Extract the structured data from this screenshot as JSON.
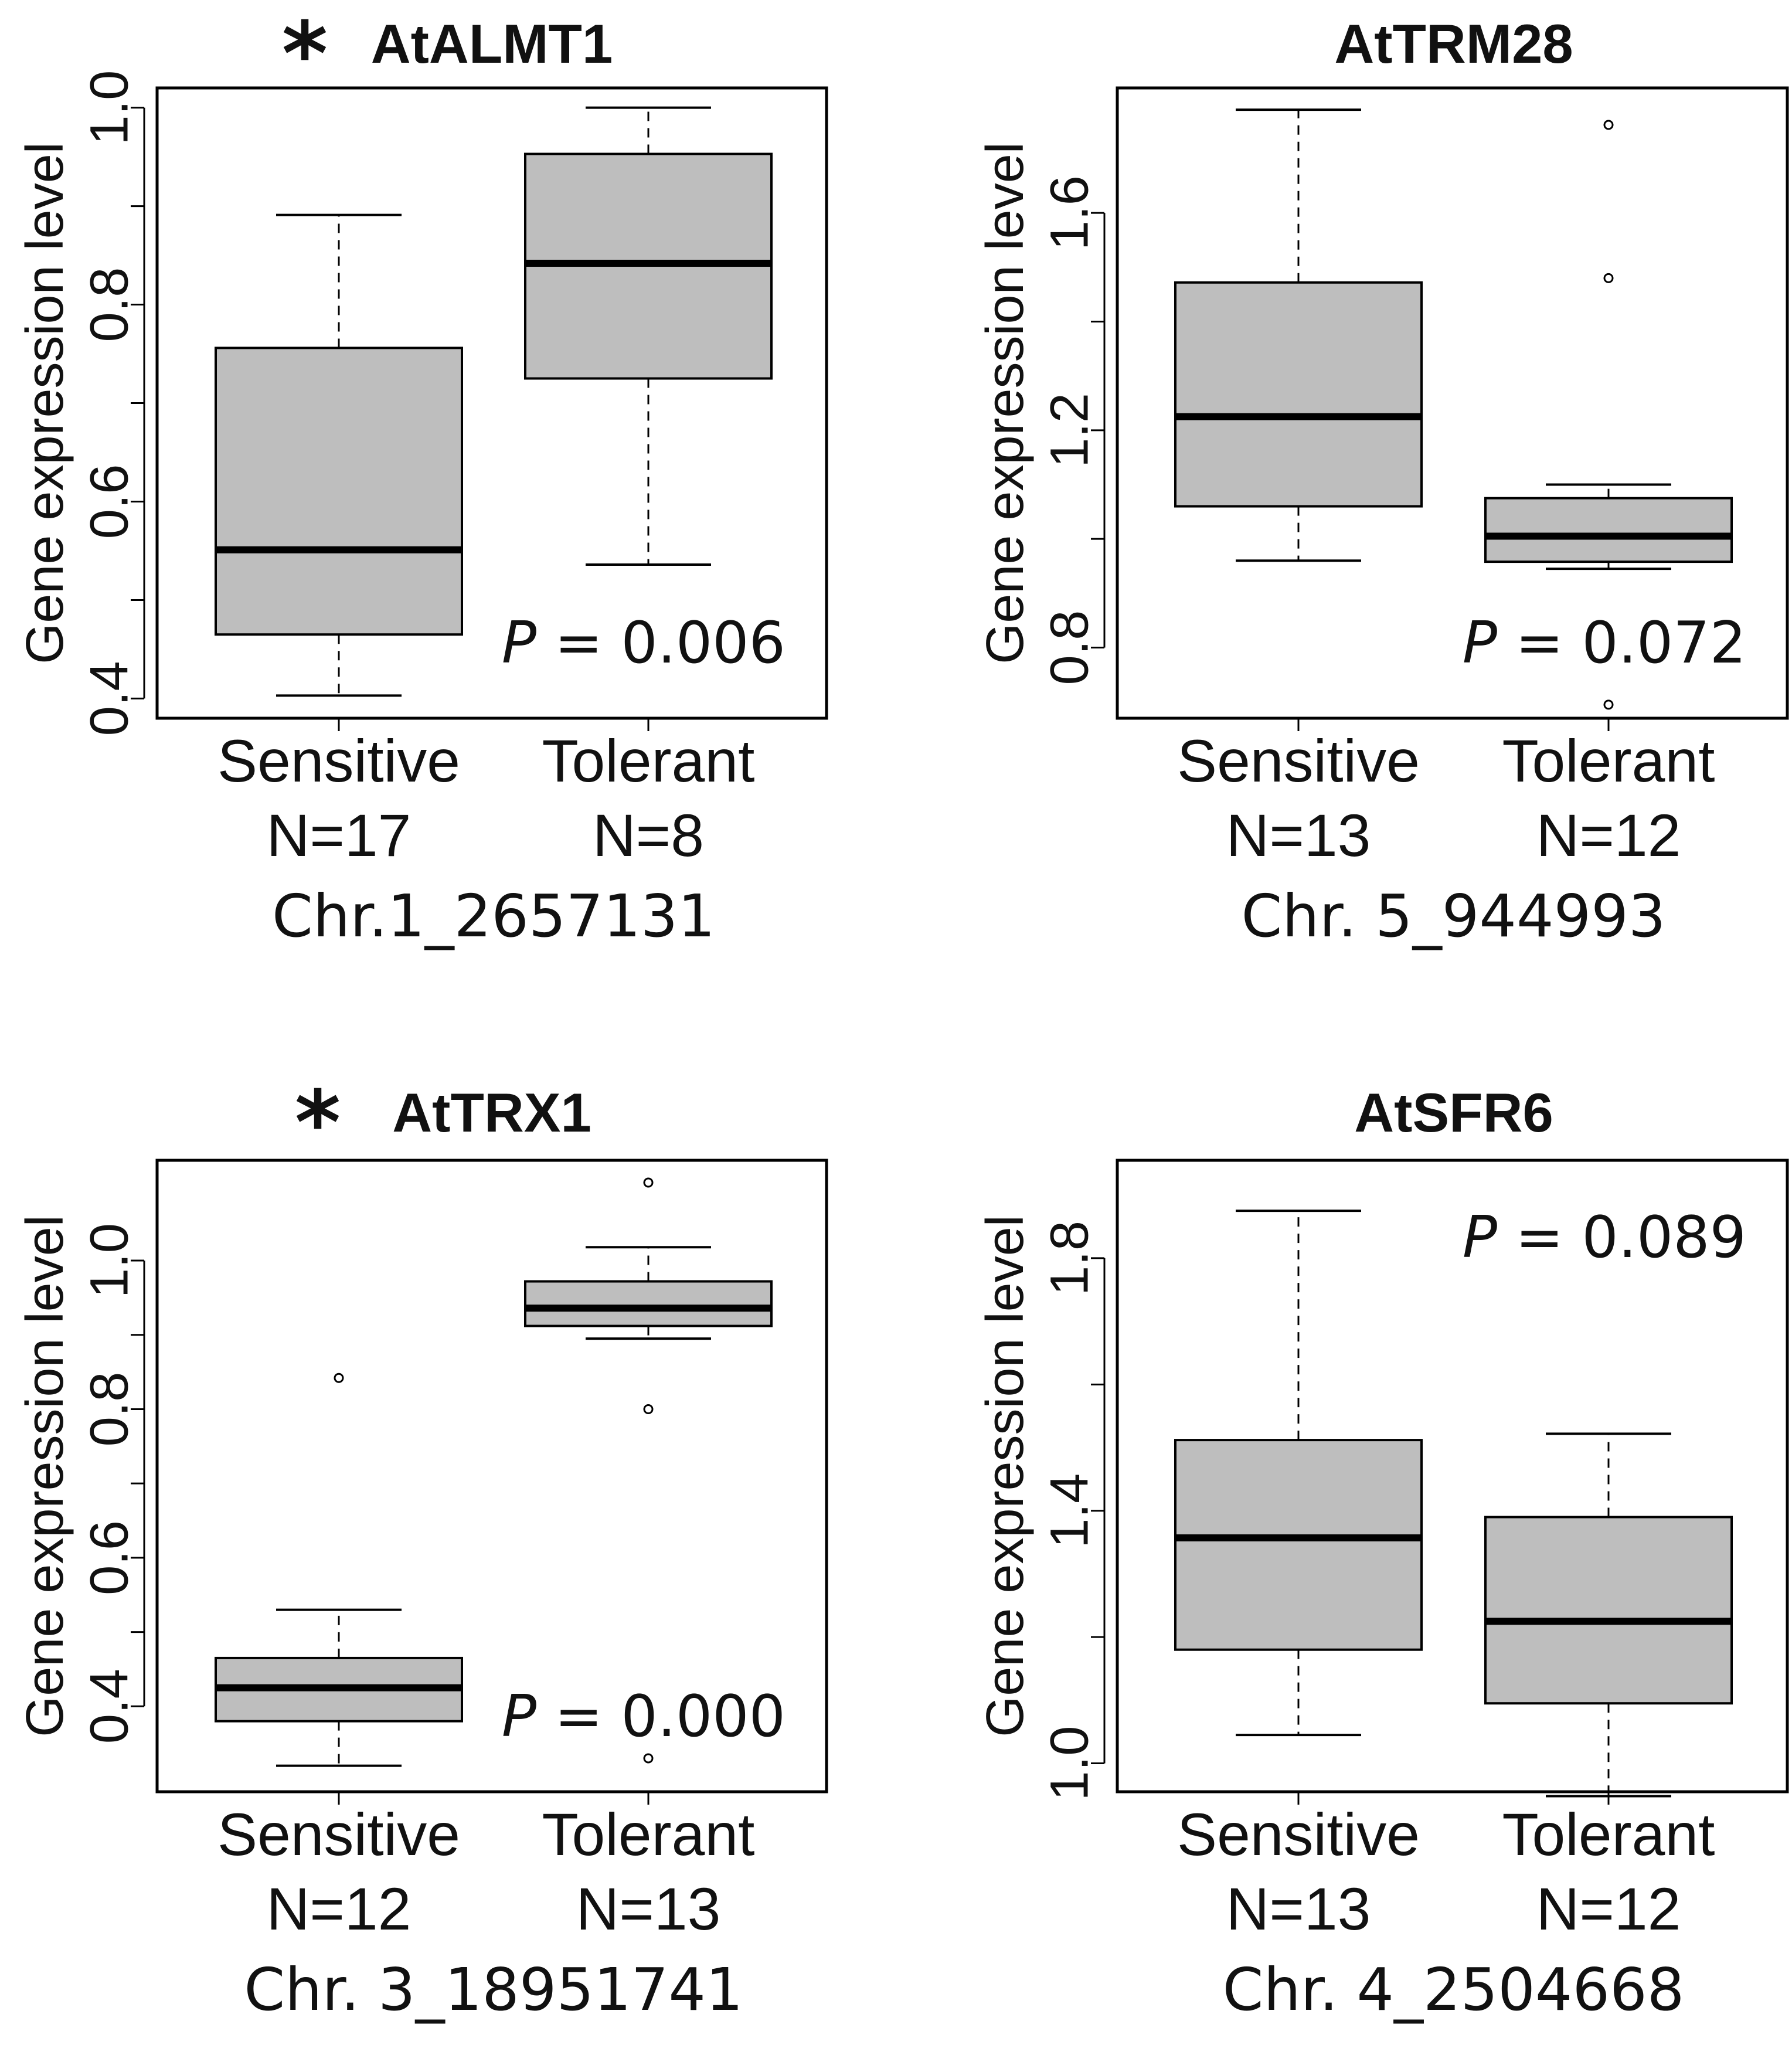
{
  "figure_colors": {
    "box_fill": "#bebebe",
    "line": "#000000"
  },
  "chart_data": [
    {
      "type": "boxplot",
      "title": "AtALMT1",
      "significance_marker": "*",
      "ylabel": "Gene expression level",
      "ylim": [
        0.38,
        1.02
      ],
      "yticks": [
        0.4,
        0.6,
        0.8,
        1.0
      ],
      "ytick_labels": [
        "0.4",
        "0.6",
        "0.8",
        "1.0"
      ],
      "p_label": "P",
      "p_value": "= 0.006",
      "p_position": "bottom-right",
      "locus": "Chr.1_2657131",
      "groups": [
        {
          "name": "Sensitive",
          "n_label": "N=17",
          "whisker_low": 0.403,
          "q1": 0.465,
          "median": 0.551,
          "q3": 0.756,
          "whisker_high": 0.891,
          "outliers": []
        },
        {
          "name": "Tolerant",
          "n_label": "N=8",
          "whisker_low": 0.536,
          "q1": 0.725,
          "median": 0.842,
          "q3": 0.953,
          "whisker_high": 1.0,
          "outliers": []
        }
      ]
    },
    {
      "type": "boxplot",
      "title": "AtTRM28",
      "significance_marker": "",
      "ylabel": "Gene expression level",
      "ylim": [
        0.67,
        1.83
      ],
      "yticks": [
        0.8,
        1.2,
        1.6
      ],
      "ytick_labels": [
        "0.8",
        "1.2",
        "1.6"
      ],
      "p_label": "P",
      "p_value": "= 0.072",
      "p_position": "bottom-right",
      "locus": "Chr. 5_944993",
      "groups": [
        {
          "name": "Sensitive",
          "n_label": "N=13",
          "whisker_low": 0.96,
          "q1": 1.06,
          "median": 1.225,
          "q3": 1.472,
          "whisker_high": 1.79,
          "outliers": []
        },
        {
          "name": "Tolerant",
          "n_label": "N=12",
          "whisker_low": 0.945,
          "q1": 0.958,
          "median": 1.005,
          "q3": 1.075,
          "whisker_high": 1.1,
          "outliers": [
            1.762,
            1.48,
            0.695
          ]
        }
      ]
    },
    {
      "type": "boxplot",
      "title": "AtTRX1",
      "significance_marker": "*",
      "ylabel": "Gene expression level",
      "ylim": [
        0.285,
        1.135
      ],
      "yticks": [
        0.4,
        0.6,
        0.8,
        1.0
      ],
      "ytick_labels": [
        "0.4",
        "0.6",
        "0.8",
        "1.0"
      ],
      "p_label": "P",
      "p_value": "= 0.000",
      "p_position": "bottom-right",
      "locus": "Chr. 3_18951741",
      "groups": [
        {
          "name": "Sensitive",
          "n_label": "N=12",
          "whisker_low": 0.32,
          "q1": 0.38,
          "median": 0.425,
          "q3": 0.465,
          "whisker_high": 0.53,
          "outliers": [
            0.842
          ]
        },
        {
          "name": "Tolerant",
          "n_label": "N=13",
          "whisker_low": 0.895,
          "q1": 0.912,
          "median": 0.936,
          "q3": 0.972,
          "whisker_high": 1.018,
          "outliers": [
            1.105,
            0.8,
            0.33
          ]
        }
      ]
    },
    {
      "type": "boxplot",
      "title": "AtSFR6",
      "significance_marker": "",
      "ylabel": "Gene expression level",
      "ylim": [
        0.955,
        1.955
      ],
      "yticks": [
        1.0,
        1.4,
        1.8
      ],
      "ytick_labels": [
        "1.0",
        "1.4",
        "1.8"
      ],
      "p_label": "P",
      "p_value": "= 0.089",
      "p_position": "top-right",
      "locus": "Chr. 4_2504668",
      "groups": [
        {
          "name": "Sensitive",
          "n_label": "N=13",
          "whisker_low": 1.045,
          "q1": 1.18,
          "median": 1.357,
          "q3": 1.512,
          "whisker_high": 1.875,
          "outliers": []
        },
        {
          "name": "Tolerant",
          "n_label": "N=12",
          "whisker_low": 0.948,
          "q1": 1.095,
          "median": 1.225,
          "q3": 1.39,
          "whisker_high": 1.522,
          "outliers": []
        }
      ]
    }
  ]
}
